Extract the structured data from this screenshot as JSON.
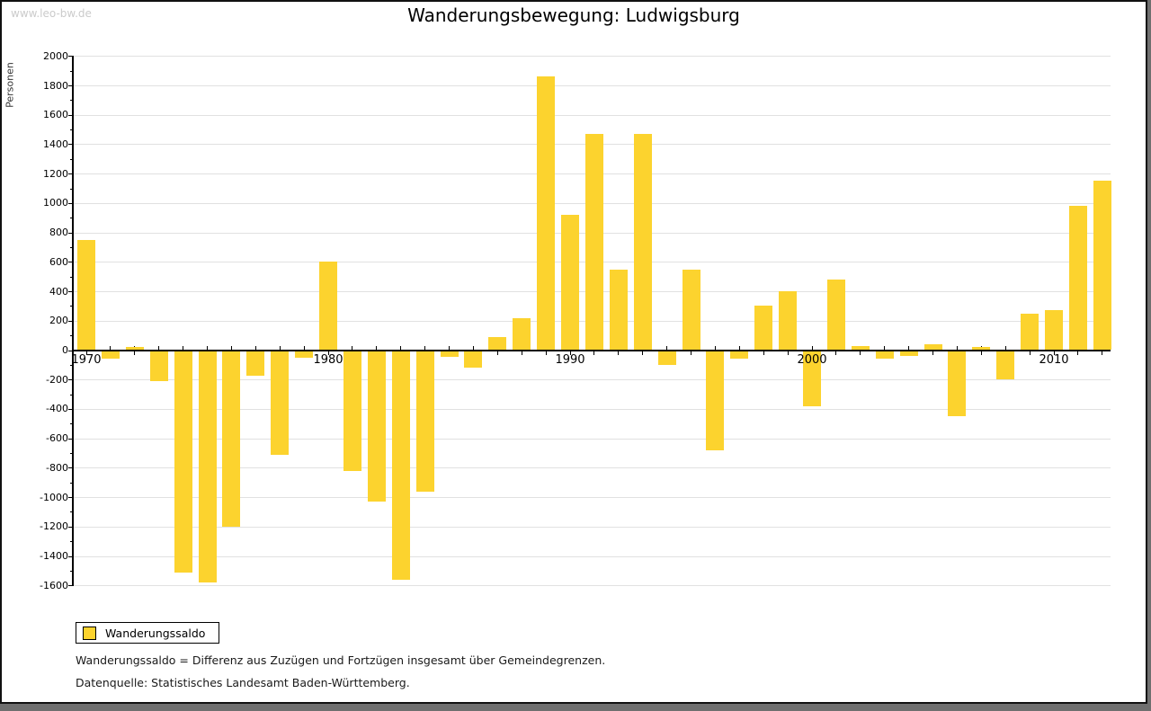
{
  "watermark": "www.leo-bw.de",
  "header": {
    "title": "Wanderungsbewegung: Ludwigsburg"
  },
  "y_axis_title": "Personen",
  "legend": {
    "label": "Wanderungssaldo"
  },
  "footnotes": {
    "definition": "Wanderungssaldo = Differenz aus Zuzügen und Fortzügen insgesamt über Gemeindegrenzen.",
    "source": "Datenquelle: Statistisches Landesamt Baden-Württemberg."
  },
  "colors": {
    "bar": "#fcd32e",
    "grid": "#e1e1e1",
    "axis": "#000000",
    "watermark": "#cbcbcb"
  },
  "chart_data": {
    "type": "bar",
    "title": "Wanderungsbewegung: Ludwigsburg",
    "xlabel": "",
    "ylabel": "Personen",
    "ylim": [
      -1600,
      2000
    ],
    "ytick_major_step": 200,
    "ytick_minor_step": 100,
    "grid": true,
    "legend_position": "bottom-left",
    "series_name": "Wanderungssaldo",
    "xticks_labeled": [
      1970,
      1980,
      1990,
      2000,
      2010
    ],
    "categories": [
      1970,
      1971,
      1972,
      1973,
      1974,
      1975,
      1976,
      1977,
      1978,
      1979,
      1980,
      1981,
      1982,
      1983,
      1984,
      1985,
      1986,
      1987,
      1988,
      1989,
      1990,
      1991,
      1992,
      1993,
      1994,
      1995,
      1996,
      1997,
      1998,
      1999,
      2000,
      2001,
      2002,
      2003,
      2004,
      2005,
      2006,
      2007,
      2008,
      2009,
      2010,
      2011,
      2012
    ],
    "values": [
      750,
      -60,
      20,
      -210,
      -1510,
      -1580,
      -1200,
      -175,
      -710,
      -55,
      600,
      -820,
      -1030,
      -1560,
      -960,
      -45,
      -120,
      90,
      220,
      1860,
      920,
      1470,
      550,
      1470,
      -100,
      550,
      -680,
      -60,
      300,
      400,
      -380,
      480,
      30,
      -60,
      -40,
      40,
      -450,
      20,
      -200,
      250,
      270,
      980,
      1150
    ]
  }
}
